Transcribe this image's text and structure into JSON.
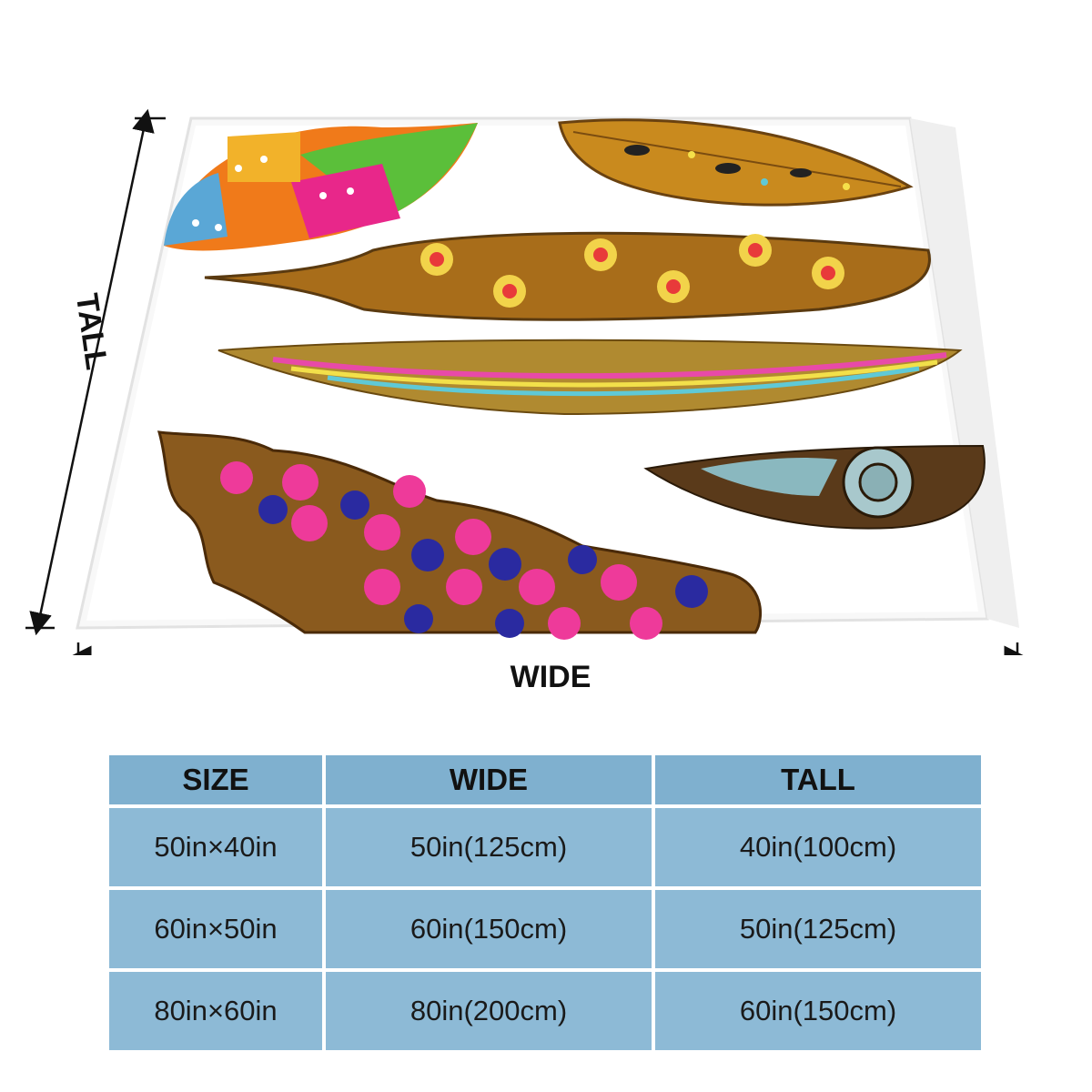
{
  "dimension_labels": {
    "wide": "WIDE",
    "tall": "TALL"
  },
  "size_table": {
    "headers": [
      "SIZE",
      "WIDE",
      "TALL"
    ],
    "rows": [
      [
        "50in×40in",
        "50in(125cm)",
        "40in(100cm)"
      ],
      [
        "60in×50in",
        "60in(150cm)",
        "50in(125cm)"
      ],
      [
        "80in×60in",
        "80in(200cm)",
        "60in(150cm)"
      ]
    ]
  },
  "colors": {
    "table_cell": "#8dbad6",
    "table_header": "#7fb0cf",
    "background": "#ffffff"
  }
}
